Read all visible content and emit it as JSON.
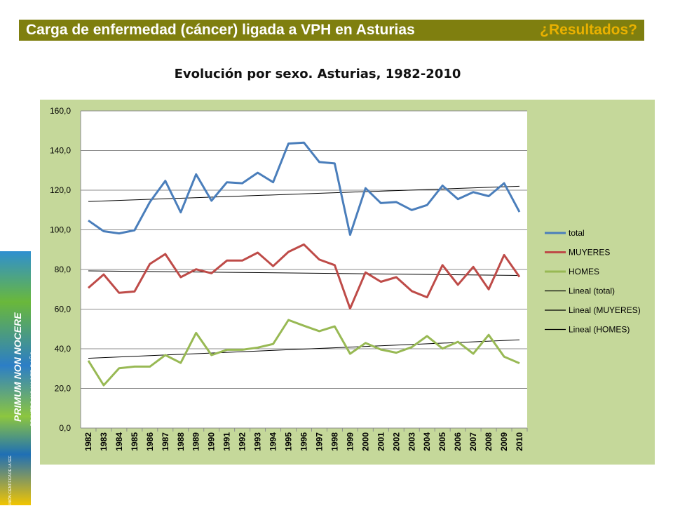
{
  "header": {
    "title": "Carga de enfermedad (cáncer) ligada a VPH en Asturias",
    "right_text": "¿Resultados?"
  },
  "side_banner": {
    "main_text": "PRIMUM NON NOCERE",
    "sub_text": "PRIMERO NO HACER DAÑO",
    "small_text": "XXIX REUNIÓN CIENTÍFICA DE LA SEE"
  },
  "chart_data": {
    "type": "line",
    "title": "Evolución por sexo. Asturias, 1982-2010",
    "xlabel": "",
    "ylabel": "",
    "ylim": [
      0,
      160
    ],
    "yticks": [
      "0,0",
      "20,0",
      "40,0",
      "60,0",
      "80,0",
      "100,0",
      "120,0",
      "140,0",
      "160,0"
    ],
    "grid": true,
    "legend_position": "right",
    "x": [
      "1982",
      "1983",
      "1984",
      "1985",
      "1986",
      "1987",
      "1988",
      "1989",
      "1990",
      "1991",
      "1992",
      "1993",
      "1994",
      "1995",
      "1996",
      "1997",
      "1998",
      "1999",
      "2000",
      "2001",
      "2002",
      "2003",
      "2004",
      "2005",
      "2006",
      "2007",
      "2008",
      "2009",
      "2010"
    ],
    "series": [
      {
        "name": "total",
        "color": "#4a7ebb",
        "values": [
          104.7,
          99.3,
          98.2,
          99.8,
          114.0,
          124.7,
          108.8,
          128.0,
          114.7,
          124.0,
          123.5,
          128.8,
          124.0,
          143.5,
          144.0,
          134.2,
          133.5,
          97.5,
          121.0,
          113.5,
          114.0,
          110.0,
          112.5,
          122.3,
          115.5,
          119.0,
          117.0,
          123.5,
          109.0
        ]
      },
      {
        "name": "MUYERES",
        "color": "#be4b48",
        "values": [
          70.7,
          77.5,
          68.2,
          68.9,
          82.8,
          87.8,
          76.1,
          80.1,
          78.1,
          84.5,
          84.5,
          88.5,
          81.7,
          88.9,
          92.6,
          85.0,
          82.2,
          60.3,
          78.5,
          73.8,
          76.1,
          69.1,
          66.0,
          82.2,
          72.3,
          81.3,
          70.0,
          87.3,
          76.3
        ]
      },
      {
        "name": "HOMES",
        "color": "#98b954",
        "values": [
          34.0,
          21.6,
          30.2,
          31.0,
          31.0,
          36.8,
          32.9,
          48.0,
          36.8,
          39.5,
          39.5,
          40.6,
          42.4,
          54.5,
          51.6,
          48.9,
          51.3,
          37.5,
          42.9,
          39.6,
          38.0,
          40.8,
          46.4,
          40.1,
          43.5,
          37.5,
          47.0,
          36.0,
          32.7
        ]
      }
    ],
    "trendlines": [
      {
        "name": "Lineal (total)",
        "color": "#000000",
        "start": 114.3,
        "end": 122.0
      },
      {
        "name": "Lineal (MUYERES)",
        "color": "#000000",
        "start": 79.3,
        "end": 77.0
      },
      {
        "name": "Lineal (HOMES)",
        "color": "#000000",
        "start": 35.2,
        "end": 44.5
      }
    ]
  }
}
